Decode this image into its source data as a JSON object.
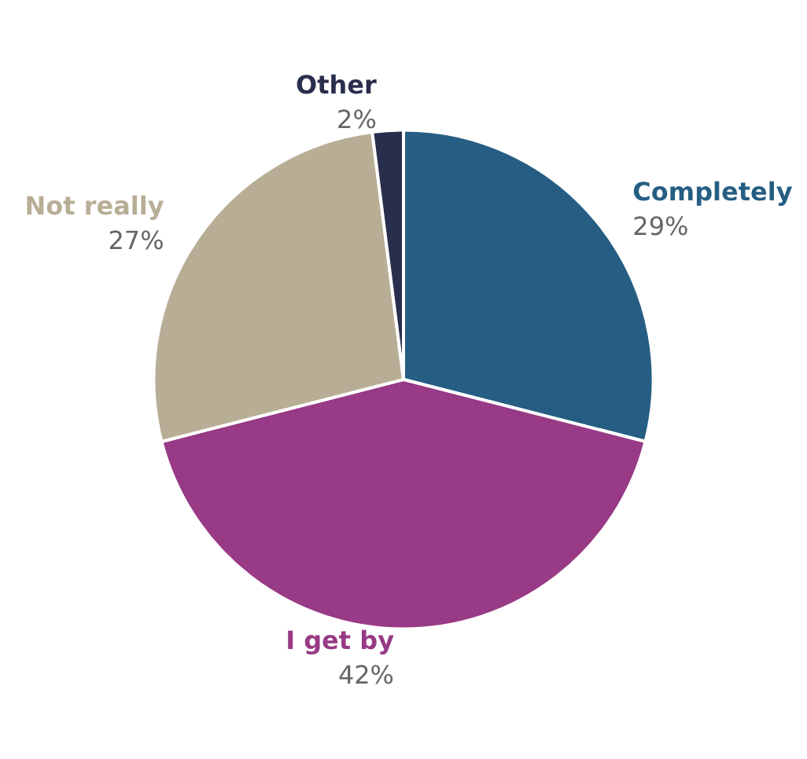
{
  "chart_data": {
    "type": "pie",
    "categories": [
      "Completely",
      "I get by",
      "Not really",
      "Other"
    ],
    "values": [
      29,
      42,
      27,
      2
    ],
    "colors": [
      "#265e83",
      "#983a85",
      "#b8ae96",
      "#2a2e4d"
    ],
    "value_labels": [
      "29%",
      "42%",
      "27%",
      "2%"
    ],
    "legend": false
  }
}
